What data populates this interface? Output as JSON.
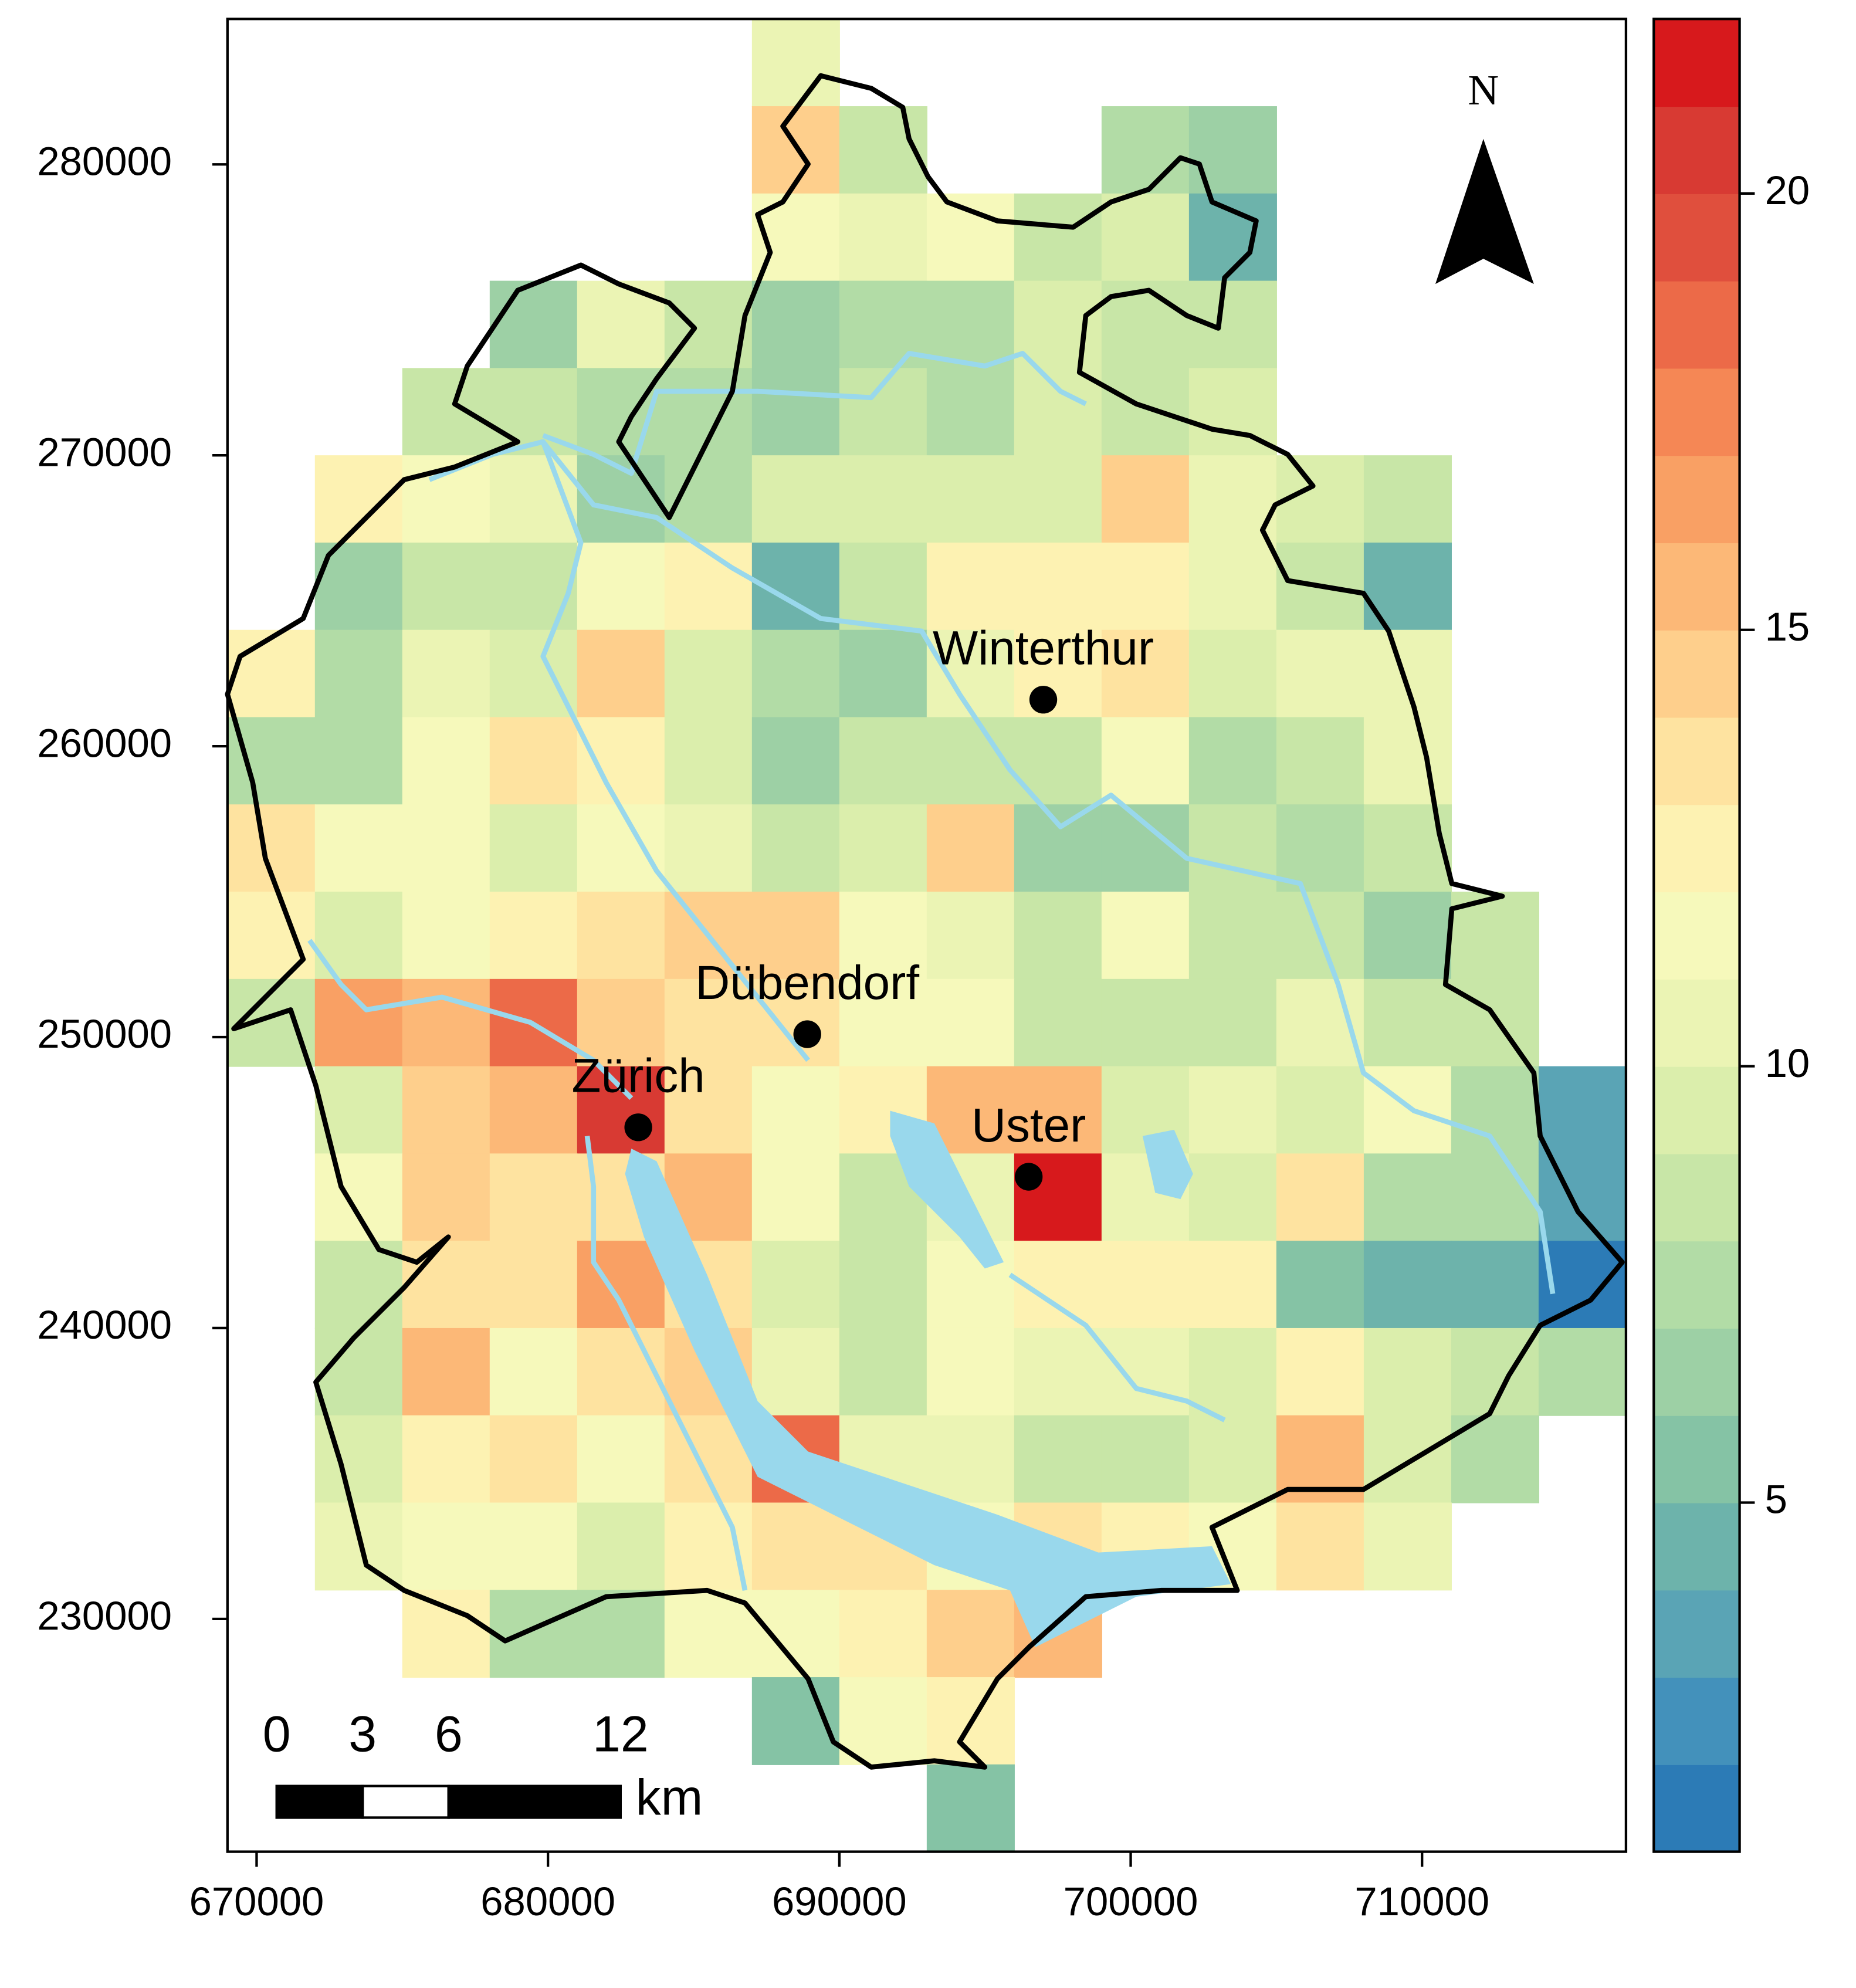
{
  "chart_data": {
    "type": "raster",
    "xlim": [
      669000,
      717000
    ],
    "ylim": [
      222000,
      285000
    ],
    "xticks": [
      670000,
      680000,
      690000,
      700000,
      710000
    ],
    "yticks": [
      230000,
      240000,
      250000,
      260000,
      270000,
      280000
    ],
    "x_edges": [
      669000,
      672000,
      675000,
      678000,
      681000,
      684000,
      687000,
      690000,
      693000,
      696000,
      699000,
      702000,
      705000,
      708000,
      711000,
      714000,
      717000
    ],
    "y_edges": [
      285000,
      282000,
      279000,
      276000,
      273000,
      270000,
      267000,
      264000,
      261000,
      258000,
      255000,
      252000,
      249000,
      246000,
      243000,
      240000,
      237000,
      234000,
      231000,
      228000,
      225000,
      222000
    ],
    "values": [
      [
        null,
        null,
        null,
        null,
        null,
        null,
        10.5,
        null,
        null,
        null,
        null,
        null,
        null,
        null,
        null,
        null
      ],
      [
        null,
        null,
        null,
        null,
        null,
        null,
        14.5,
        8.5,
        null,
        null,
        7.5,
        6.5,
        null,
        null,
        null,
        null
      ],
      [
        null,
        null,
        null,
        null,
        null,
        null,
        11.5,
        10.5,
        11.5,
        8.5,
        9.5,
        4.5,
        null,
        null,
        null,
        null
      ],
      [
        null,
        null,
        null,
        6.5,
        10.5,
        8.5,
        6.5,
        7.5,
        7.5,
        9.5,
        8.5,
        8.5,
        null,
        null,
        null,
        null
      ],
      [
        null,
        null,
        8.5,
        8.5,
        7.5,
        7.5,
        6.5,
        8.5,
        7.5,
        9.5,
        8.5,
        9.5,
        null,
        null,
        null,
        null
      ],
      [
        null,
        12.5,
        11.5,
        10.5,
        6.5,
        7.5,
        9.5,
        9.5,
        9.5,
        9.5,
        14.5,
        10.5,
        9.5,
        8.5,
        null,
        null
      ],
      [
        null,
        6.5,
        8.5,
        8.5,
        11.5,
        12.5,
        4.5,
        8.5,
        12.5,
        12.5,
        12.5,
        10.5,
        8.5,
        4.5,
        null,
        null
      ],
      [
        12.5,
        7.5,
        10.5,
        9.5,
        14.5,
        9.5,
        7.5,
        6.5,
        10.5,
        12.5,
        13.5,
        9.5,
        10.5,
        10.5,
        null,
        null
      ],
      [
        7.5,
        7.5,
        11.5,
        13.5,
        12.5,
        9.5,
        6.5,
        8.5,
        8.5,
        8.5,
        11.5,
        7.5,
        8.5,
        10.5,
        null,
        null
      ],
      [
        13.5,
        11.5,
        11.5,
        9.5,
        11.5,
        10.5,
        8.5,
        9.5,
        14.5,
        6.5,
        6.5,
        8.5,
        7.5,
        8.5,
        null,
        null
      ],
      [
        12.5,
        9.5,
        11.5,
        12.5,
        13.5,
        14.5,
        14.5,
        11.5,
        10.5,
        8.5,
        11.5,
        8.5,
        8.5,
        6.5,
        8.5,
        null
      ],
      [
        8.5,
        16.5,
        15.5,
        18.5,
        14.5,
        13.5,
        13.5,
        11.5,
        11.5,
        8.5,
        8.5,
        8.5,
        10.5,
        8.5,
        8.5,
        null
      ],
      [
        null,
        9.5,
        14.5,
        15.5,
        20.5,
        13.5,
        11.5,
        12.5,
        15.5,
        15.5,
        9.5,
        10.5,
        9.5,
        11.5,
        7.5,
        3.5
      ],
      [
        null,
        11.5,
        14.5,
        13.5,
        13.5,
        15.5,
        11.5,
        8.5,
        10.5,
        21.5,
        10.5,
        9.5,
        13.5,
        7.5,
        7.5,
        3.5
      ],
      [
        null,
        8.5,
        13.5,
        13.5,
        16.5,
        13.5,
        9.5,
        8.5,
        11.5,
        12.5,
        12.5,
        12.5,
        5.5,
        4.5,
        4.5,
        1.5
      ],
      [
        null,
        8.5,
        15.5,
        11.5,
        13.5,
        14.5,
        10.5,
        8.5,
        11.5,
        10.5,
        10.5,
        9.5,
        12.5,
        9.5,
        8.5,
        7.5
      ],
      [
        null,
        9.5,
        12.5,
        13.5,
        11.5,
        13.5,
        18.5,
        10.5,
        10.5,
        8.5,
        8.5,
        9.5,
        15.5,
        9.5,
        7.5,
        null
      ],
      [
        null,
        10.5,
        11.5,
        11.5,
        9.5,
        12.5,
        13.5,
        13.5,
        11.5,
        13.5,
        12.5,
        11.5,
        13.5,
        10.5,
        null,
        null
      ],
      [
        null,
        null,
        12.5,
        7.5,
        7.5,
        11.5,
        11.5,
        12.5,
        14.5,
        15.5,
        null,
        null,
        null,
        null,
        null,
        null
      ],
      [
        null,
        null,
        null,
        null,
        null,
        null,
        5.5,
        11.5,
        12.5,
        null,
        null,
        null,
        null,
        null,
        null,
        null
      ],
      [
        null,
        null,
        null,
        null,
        null,
        null,
        null,
        null,
        5.5,
        null,
        null,
        null,
        null,
        null,
        null,
        null
      ]
    ],
    "clim": [
      1,
      22
    ],
    "cticks": [
      5,
      10,
      15,
      20
    ],
    "colors": [
      "#2c7bb6",
      "#4391bb",
      "#5aa4b5",
      "#6db3ab",
      "#85c3a5",
      "#9dd0a5",
      "#b2dca6",
      "#c8e6a7",
      "#dbeeac",
      "#ebf4b4",
      "#f6f9bb",
      "#fdf2b2",
      "#fee3a0",
      "#fecf8c",
      "#fcb877",
      "#f9a064",
      "#f58755",
      "#ec6a48",
      "#e04f3d",
      "#d83a33",
      "#d7191c"
    ],
    "cities": [
      {
        "name": "Winterthur",
        "x": 697000,
        "y": 261600
      },
      {
        "name": "Dübendorf",
        "x": 688900,
        "y": 250100
      },
      {
        "name": "Zürich",
        "x": 683100,
        "y": 246900
      },
      {
        "name": "Uster",
        "x": 696500,
        "y": 245200
      }
    ],
    "north_label": "N",
    "scale_bar": {
      "ticks": [
        0,
        3,
        6,
        12
      ],
      "unit": "km"
    }
  }
}
